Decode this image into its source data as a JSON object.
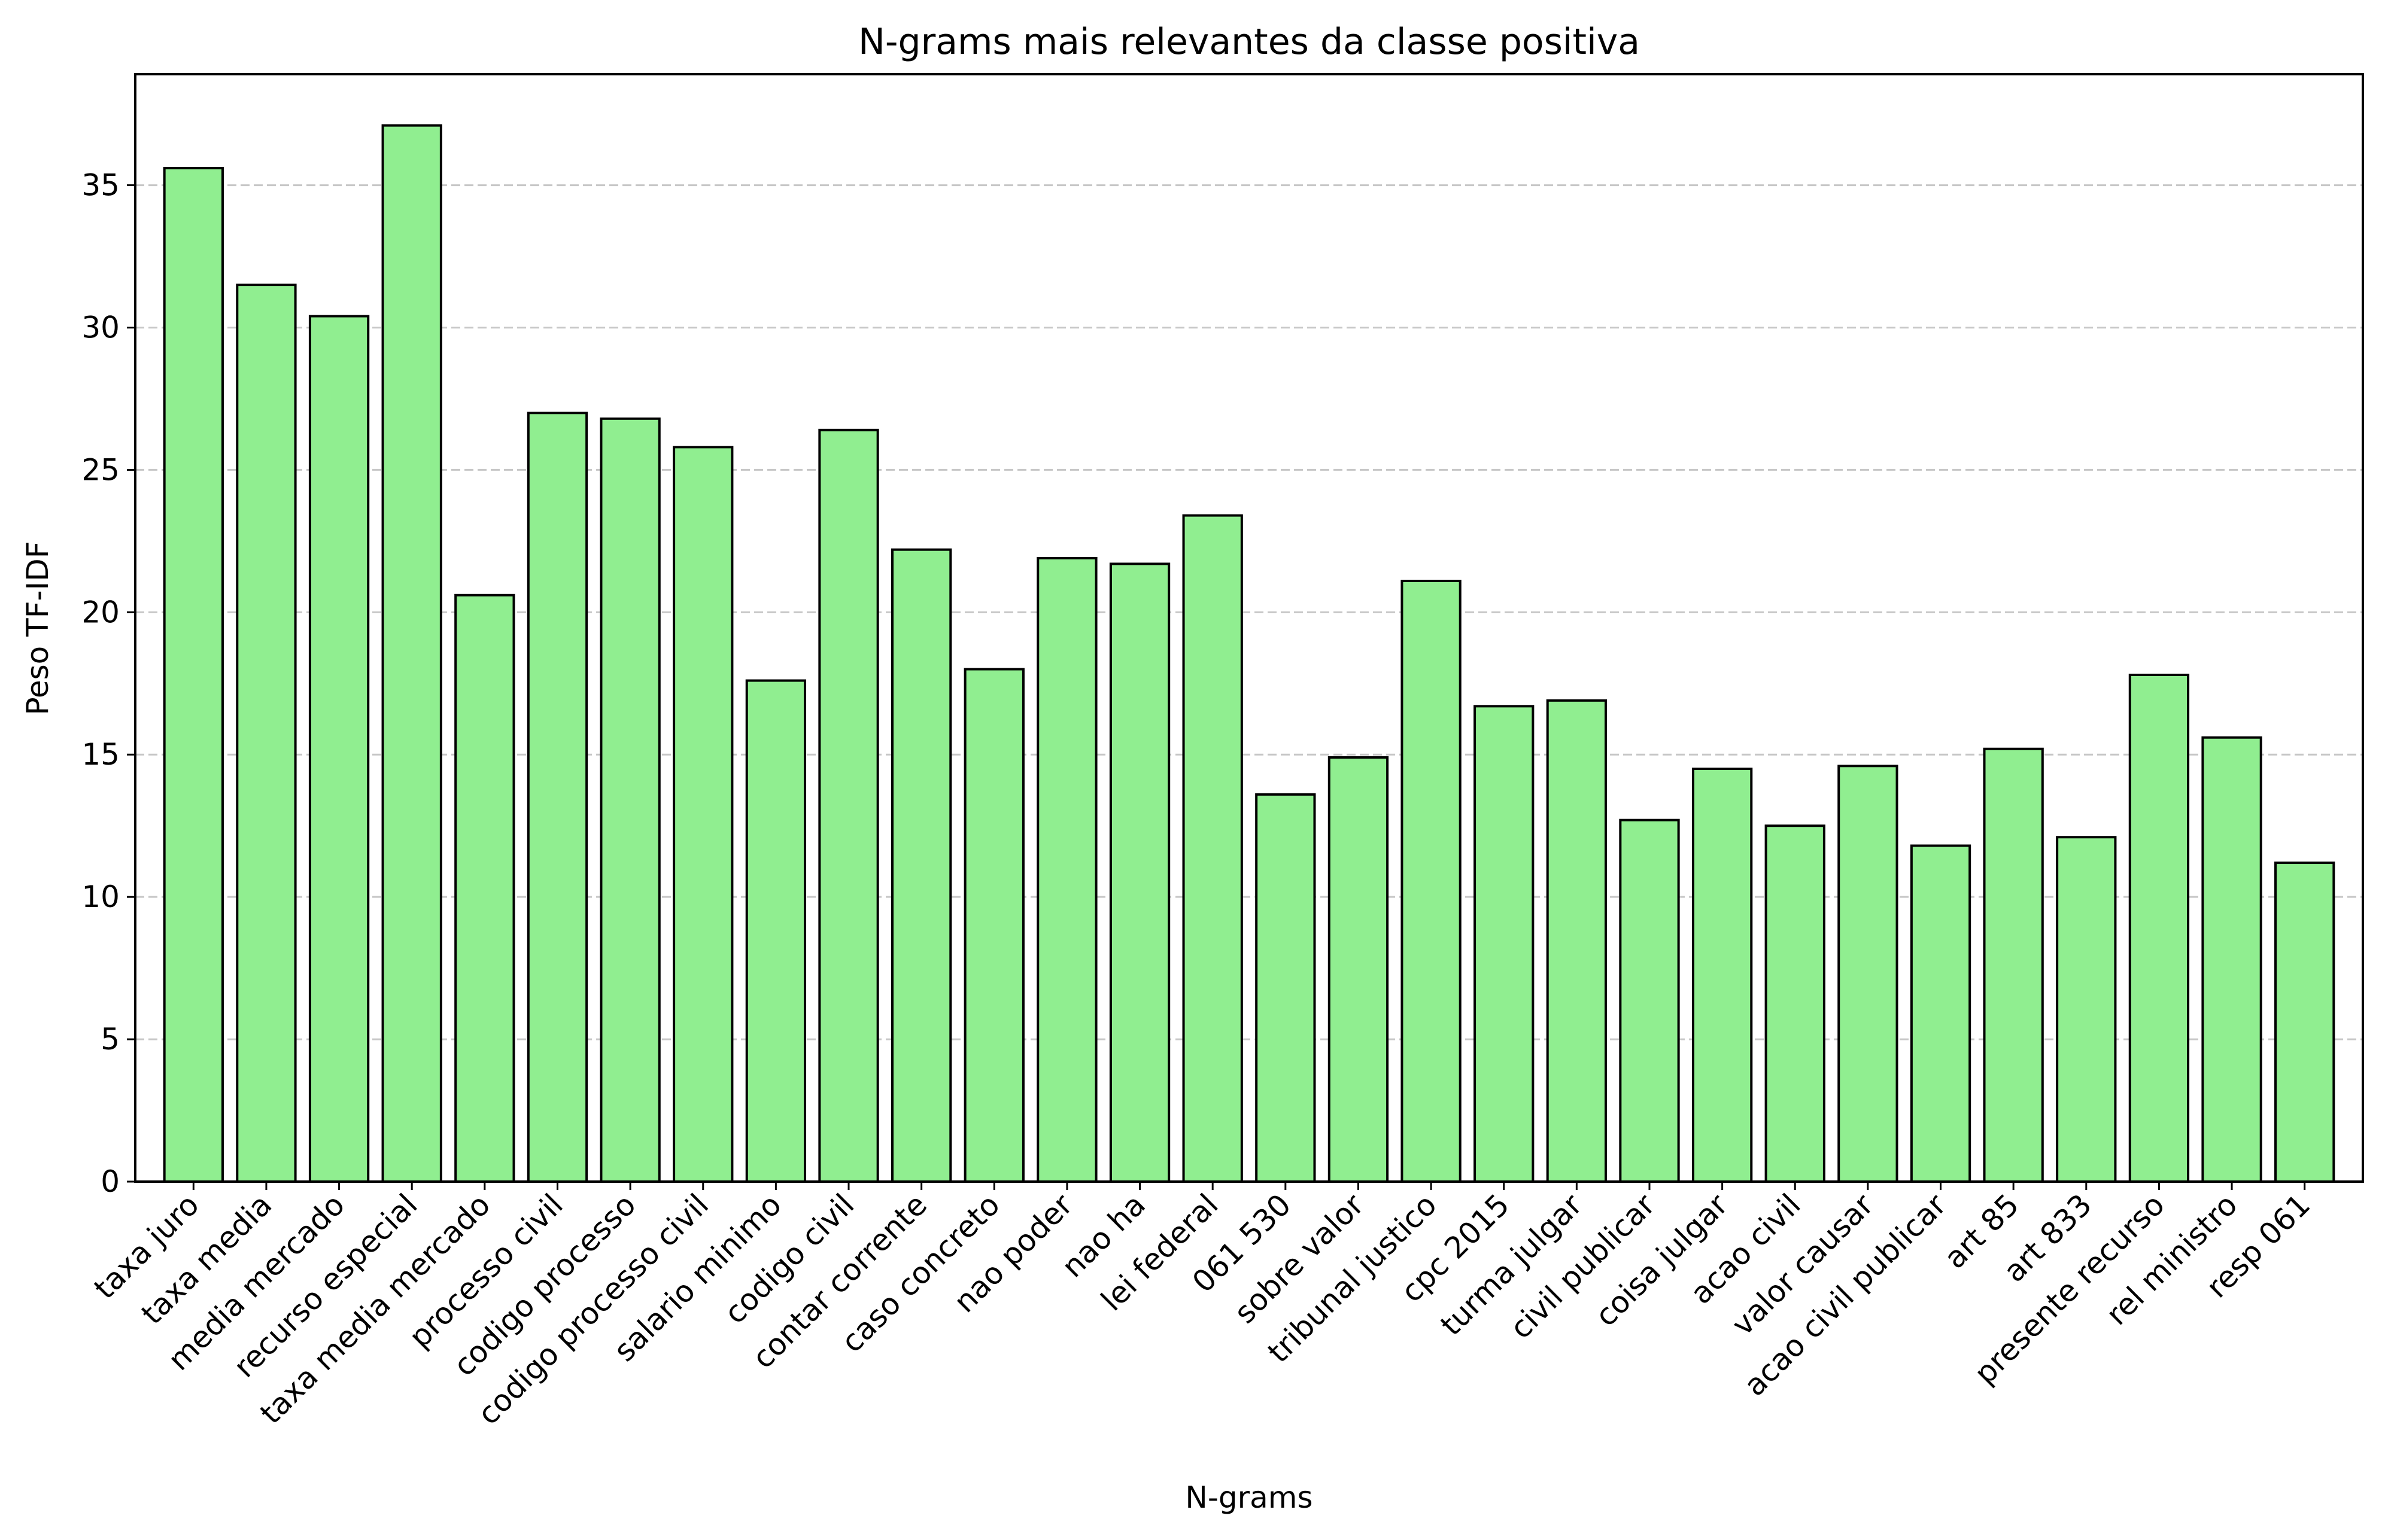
{
  "chart_data": {
    "type": "bar",
    "title": "N-grams mais relevantes da classe positiva",
    "xlabel": "N-grams",
    "ylabel": "Peso TF-IDF",
    "categories": [
      "taxa juro",
      "taxa media",
      "media mercado",
      "recurso especial",
      "taxa media mercado",
      "processo civil",
      "codigo processo",
      "codigo processo civil",
      "salario minimo",
      "codigo civil",
      "contar corrente",
      "caso concreto",
      "nao poder",
      "nao ha",
      "lei federal",
      "061 530",
      "sobre valor",
      "tribunal justico",
      "cpc 2015",
      "turma julgar",
      "civil publicar",
      "coisa julgar",
      "acao civil",
      "valor causar",
      "acao civil publicar",
      "art 85",
      "art 833",
      "presente recurso",
      "rel ministro",
      "resp 061"
    ],
    "values": [
      35.6,
      31.5,
      30.4,
      37.1,
      20.6,
      27.0,
      26.8,
      25.8,
      17.6,
      26.4,
      22.2,
      18.0,
      21.9,
      21.7,
      23.4,
      13.6,
      14.9,
      21.1,
      16.7,
      16.9,
      12.7,
      14.5,
      12.5,
      14.6,
      11.8,
      15.2,
      12.1,
      17.8,
      15.6,
      11.2
    ],
    "yticks": [
      0,
      5,
      10,
      15,
      20,
      25,
      30,
      35
    ],
    "ylim": [
      0,
      38.9
    ],
    "grid": "y",
    "bar_color": "#90ee90",
    "edge_color": "#000000"
  }
}
